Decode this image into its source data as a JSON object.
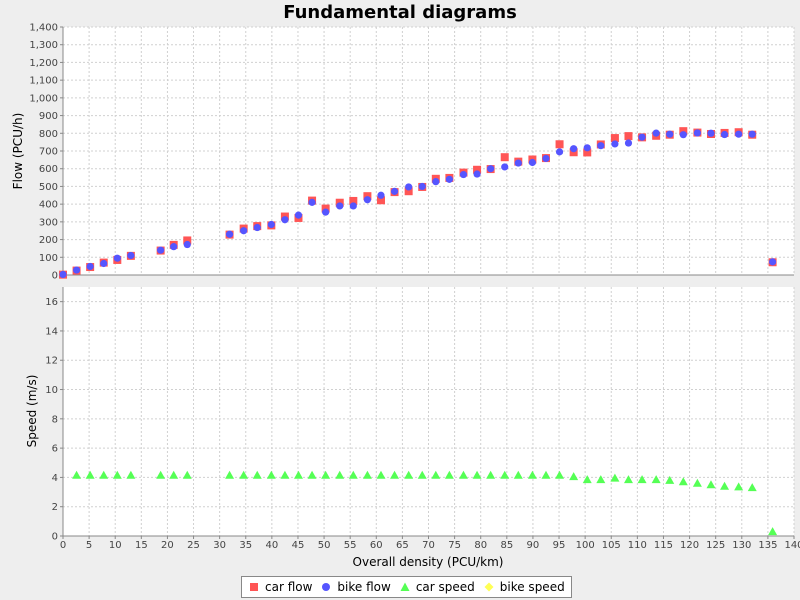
{
  "title": "Fundamental diagrams",
  "colors": {
    "car_flow": "#ff5555",
    "bike_flow": "#5555ff",
    "car_speed": "#55ff55",
    "bike_speed": "#ffff55",
    "plot_bg": "#ffffff",
    "grid": "#d0d0d0"
  },
  "chart_data": [
    {
      "type": "scatter",
      "subplot": "top",
      "xlabel": "Overall density (PCU/km)",
      "ylabel": "Flow (PCU/h)",
      "xlim": [
        0,
        140
      ],
      "ylim": [
        0,
        1400
      ],
      "x_ticks": [
        "0",
        "5",
        "10",
        "15",
        "20",
        "25",
        "30",
        "35",
        "40",
        "45",
        "50",
        "55",
        "60",
        "65",
        "70",
        "75",
        "80",
        "85",
        "90",
        "95",
        "100",
        "105",
        "110",
        "115",
        "120",
        "125",
        "130",
        "135",
        "140"
      ],
      "y_ticks": [
        "0",
        "100",
        "200",
        "300",
        "400",
        "500",
        "600",
        "700",
        "800",
        "900",
        "1,000",
        "1,100",
        "1,200",
        "1,300",
        "1,400"
      ],
      "grid": true,
      "series": [
        {
          "name": "car flow",
          "marker": "square",
          "points": [
            [
              0,
              2
            ],
            [
              2.6,
              25
            ],
            [
              5.2,
              45
            ],
            [
              7.8,
              70
            ],
            [
              10.4,
              85
            ],
            [
              13,
              108
            ],
            [
              18.7,
              138
            ],
            [
              21.2,
              170
            ],
            [
              23.8,
              195
            ],
            [
              31.9,
              228
            ],
            [
              34.6,
              262
            ],
            [
              37.2,
              276
            ],
            [
              39.9,
              280
            ],
            [
              42.5,
              330
            ],
            [
              45.1,
              322
            ],
            [
              47.7,
              420
            ],
            [
              50.3,
              375
            ],
            [
              53,
              408
            ],
            [
              55.6,
              418
            ],
            [
              58.3,
              445
            ],
            [
              60.9,
              422
            ],
            [
              63.5,
              468
            ],
            [
              66.2,
              473
            ],
            [
              68.8,
              497
            ],
            [
              71.4,
              543
            ],
            [
              74,
              548
            ],
            [
              76.7,
              578
            ],
            [
              79.3,
              594
            ],
            [
              81.9,
              598
            ],
            [
              84.6,
              665
            ],
            [
              87.2,
              640
            ],
            [
              89.9,
              652
            ],
            [
              92.5,
              660
            ],
            [
              95.1,
              738
            ],
            [
              97.8,
              693
            ],
            [
              100.4,
              692
            ],
            [
              103,
              737
            ],
            [
              105.7,
              773
            ],
            [
              108.3,
              784
            ],
            [
              110.9,
              777
            ],
            [
              113.6,
              786
            ],
            [
              116.2,
              792
            ],
            [
              118.8,
              812
            ],
            [
              121.5,
              804
            ],
            [
              124.1,
              796
            ],
            [
              126.7,
              802
            ],
            [
              129.4,
              806
            ],
            [
              132,
              792
            ],
            [
              135.9,
              72
            ]
          ]
        },
        {
          "name": "bike flow",
          "marker": "circle",
          "points": [
            [
              0,
              3
            ],
            [
              2.6,
              28
            ],
            [
              5.2,
              48
            ],
            [
              7.8,
              65
            ],
            [
              10.4,
              95
            ],
            [
              13,
              110
            ],
            [
              18.7,
              140
            ],
            [
              21.2,
              160
            ],
            [
              23.8,
              172
            ],
            [
              31.9,
              230
            ],
            [
              34.6,
              250
            ],
            [
              37.2,
              268
            ],
            [
              39.9,
              285
            ],
            [
              42.5,
              312
            ],
            [
              45.1,
              338
            ],
            [
              47.7,
              410
            ],
            [
              50.3,
              355
            ],
            [
              53,
              390
            ],
            [
              55.6,
              390
            ],
            [
              58.3,
              425
            ],
            [
              60.9,
              450
            ],
            [
              63.5,
              472
            ],
            [
              66.2,
              497
            ],
            [
              68.8,
              500
            ],
            [
              71.4,
              527
            ],
            [
              74,
              540
            ],
            [
              76.7,
              567
            ],
            [
              79.3,
              570
            ],
            [
              81.9,
              600
            ],
            [
              84.6,
              610
            ],
            [
              87.2,
              632
            ],
            [
              89.9,
              635
            ],
            [
              92.5,
              658
            ],
            [
              95.1,
              695
            ],
            [
              97.8,
              713
            ],
            [
              100.4,
              718
            ],
            [
              103,
              730
            ],
            [
              105.7,
              740
            ],
            [
              108.3,
              745
            ],
            [
              110.9,
              778
            ],
            [
              113.6,
              801
            ],
            [
              116.2,
              795
            ],
            [
              118.8,
              792
            ],
            [
              121.5,
              802
            ],
            [
              124.1,
              800
            ],
            [
              126.7,
              793
            ],
            [
              129.4,
              795
            ],
            [
              132,
              795
            ],
            [
              135.9,
              74
            ]
          ]
        }
      ]
    },
    {
      "type": "scatter",
      "subplot": "bottom",
      "xlabel": "Overall density (PCU/km)",
      "ylabel": "Speed (m/s)",
      "xlim": [
        0,
        140
      ],
      "ylim": [
        0,
        17
      ],
      "x_ticks": [
        "0",
        "5",
        "10",
        "15",
        "20",
        "25",
        "30",
        "35",
        "40",
        "45",
        "50",
        "55",
        "60",
        "65",
        "70",
        "75",
        "80",
        "85",
        "90",
        "95",
        "100",
        "105",
        "110",
        "115",
        "120",
        "125",
        "130",
        "135",
        "140"
      ],
      "y_ticks": [
        "0",
        "2",
        "4",
        "6",
        "8",
        "10",
        "12",
        "14",
        "16"
      ],
      "grid": true,
      "series": [
        {
          "name": "car speed",
          "marker": "triangle",
          "points": [
            [
              2.6,
              4.15
            ],
            [
              5.2,
              4.15
            ],
            [
              7.8,
              4.15
            ],
            [
              10.4,
              4.15
            ],
            [
              13,
              4.15
            ],
            [
              18.7,
              4.15
            ],
            [
              21.2,
              4.15
            ],
            [
              23.8,
              4.15
            ],
            [
              31.9,
              4.15
            ],
            [
              34.6,
              4.15
            ],
            [
              37.2,
              4.15
            ],
            [
              39.9,
              4.15
            ],
            [
              42.5,
              4.15
            ],
            [
              45.1,
              4.15
            ],
            [
              47.7,
              4.15
            ],
            [
              50.3,
              4.15
            ],
            [
              53,
              4.15
            ],
            [
              55.6,
              4.15
            ],
            [
              58.3,
              4.15
            ],
            [
              60.9,
              4.15
            ],
            [
              63.5,
              4.15
            ],
            [
              66.2,
              4.15
            ],
            [
              68.8,
              4.15
            ],
            [
              71.4,
              4.15
            ],
            [
              74,
              4.15
            ],
            [
              76.7,
              4.15
            ],
            [
              79.3,
              4.15
            ],
            [
              81.9,
              4.15
            ],
            [
              84.6,
              4.15
            ],
            [
              87.2,
              4.15
            ],
            [
              89.9,
              4.15
            ],
            [
              92.5,
              4.15
            ],
            [
              95.1,
              4.15
            ],
            [
              97.8,
              4.05
            ],
            [
              100.4,
              3.85
            ],
            [
              103,
              3.85
            ],
            [
              105.7,
              3.95
            ],
            [
              108.3,
              3.85
            ],
            [
              110.9,
              3.85
            ],
            [
              113.6,
              3.85
            ],
            [
              116.2,
              3.8
            ],
            [
              118.8,
              3.7
            ],
            [
              121.5,
              3.6
            ],
            [
              124.1,
              3.5
            ],
            [
              126.7,
              3.4
            ],
            [
              129.4,
              3.35
            ],
            [
              132,
              3.3
            ],
            [
              135.9,
              0.3
            ]
          ]
        },
        {
          "name": "bike speed",
          "marker": "diamond",
          "points": []
        }
      ]
    }
  ]
}
